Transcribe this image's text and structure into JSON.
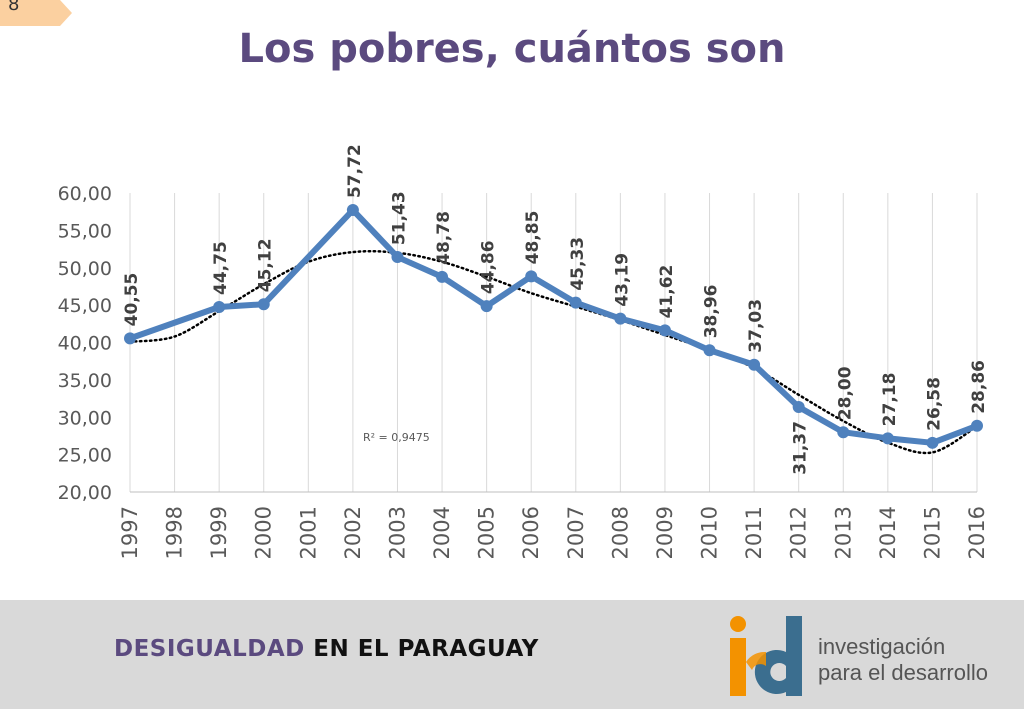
{
  "slide_number": "8",
  "title": "Los pobres, cuántos son",
  "footer": {
    "accent_text": "DESIGUALDAD",
    "rest_text": " EN EL PARAGUAY",
    "logo_line1": "investigación",
    "logo_line2": "para el desarrollo",
    "logo_mark": "id"
  },
  "colors": {
    "title": "#5b4a7f",
    "series": "#4f81bd",
    "trendline": "#000000",
    "footer_bg": "#d9d9d9",
    "logo_orange": "#f39200",
    "logo_blue": "#3b6e8f"
  },
  "chart_data": {
    "type": "line",
    "x": [
      "1997",
      "1998",
      "1999",
      "2000",
      "2001",
      "2002",
      "2003",
      "2004",
      "2005",
      "2006",
      "2007",
      "2008",
      "2009",
      "2010",
      "2011",
      "2012",
      "2013",
      "2014",
      "2015",
      "2016"
    ],
    "series": [
      {
        "values": [
          40.55,
          null,
          44.75,
          45.12,
          null,
          57.72,
          51.43,
          48.78,
          44.86,
          48.85,
          45.33,
          43.19,
          41.62,
          38.96,
          37.03,
          31.37,
          28.0,
          27.18,
          26.58,
          28.86
        ],
        "labels": [
          "40,55",
          "",
          "44,75",
          "45,12",
          "",
          "57,72",
          "51,43",
          "48,78",
          "44,86",
          "48,85",
          "45,33",
          "43,19",
          "41,62",
          "38,96",
          "37,03",
          "31,37",
          "28,00",
          "27,18",
          "26,58",
          "28,86"
        ]
      }
    ],
    "trendline": {
      "type": "polynomial",
      "r2_label": "R² = 0,9475",
      "values": [
        40.1,
        40.8,
        44.2,
        47.8,
        50.8,
        52.1,
        52.0,
        50.8,
        48.8,
        46.6,
        44.8,
        43.0,
        41.0,
        39.0,
        36.6,
        33.0,
        29.5,
        26.6,
        25.3,
        28.8
      ]
    },
    "yticks": [
      "20,00",
      "25,00",
      "30,00",
      "35,00",
      "40,00",
      "45,00",
      "50,00",
      "55,00",
      "60,00"
    ],
    "ylim": [
      20,
      60
    ],
    "grid": "vertical"
  }
}
